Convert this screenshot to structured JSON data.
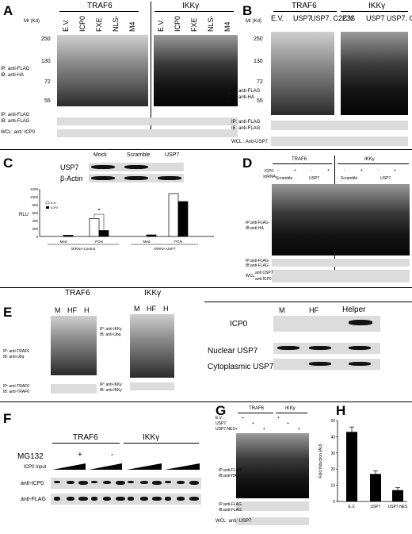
{
  "panels": {
    "A": {
      "letter": "A",
      "group1": "TRAF6",
      "group2": "IKKγ",
      "lanes": [
        "E.V.",
        "ICP0",
        "FXE",
        "NLS-",
        "M4",
        "E.V.",
        "ICP0",
        "FXE",
        "NLS-",
        "M4"
      ],
      "mr_label": "Mr (Kd)",
      "markers": [
        "250",
        "130",
        "72",
        "55"
      ],
      "ip1": "IP: anti-FLAG",
      "ib1": "IB: anti-HA",
      "ip2": "IP: anti-FLAG",
      "ib2": "IB: anti-FLAG",
      "wcl": "WCL: anti: ICP0"
    },
    "B": {
      "letter": "B",
      "group1": "TRAF6",
      "group2": "IKKγ",
      "lanes": [
        "E.V.",
        "USP7",
        "USP7. C223S",
        "E.V.",
        "USP7",
        "USP7. C223S"
      ],
      "mr_label": "Mr (Kd)",
      "markers": [
        "250",
        "130",
        "72",
        "55"
      ],
      "ip1": "IP: anti-FLAG",
      "ib1": "IB: anti-HA",
      "ip2": "IP: anti-FLAG",
      "ib2": "IB: anti-FLAG",
      "wcl": "WCL : Anti-USP7"
    },
    "C": {
      "letter": "C",
      "blot_cols": [
        "Mock",
        "Scramble",
        "USP7"
      ],
      "blot_rows": [
        "USP7",
        "β-Actin"
      ],
      "ylabel": "RLU",
      "legend": [
        "E.V.",
        "ICP0"
      ],
      "yticks": [
        "0",
        "200",
        "400",
        "600",
        "800",
        "1000",
        "1200"
      ],
      "x_cats": [
        "Med",
        "PGN",
        "Med",
        "PGN"
      ],
      "group_labels": [
        "shRNA-Control",
        "shRNA-USP7"
      ],
      "sig": "*"
    },
    "D": {
      "letter": "D",
      "group1": "TRAF6",
      "group2": "IKKγ",
      "icp0": "ICP0",
      "shrna": "shRNA",
      "signs": [
        "-",
        "+",
        "-",
        "+",
        "-",
        "+",
        "-",
        "+"
      ],
      "sub": [
        "Scramble",
        "USP7",
        "Scramble",
        "USP7"
      ],
      "ip1": "IP:anti-FLAG",
      "ib1": "IB:anti-HA",
      "ip2": "IP:anti-FLAG",
      "ib2": "IB:anti-FLAG",
      "wcl": "WCL:",
      "wcl1": "anti:USP7",
      "wcl2": "anti:ICP0"
    },
    "E": {
      "letter": "E",
      "group1": "TRAF6",
      "group2": "IKKγ",
      "lanes": [
        "M",
        "HF",
        "H"
      ],
      "ip1": "IP: anti-TRAF6",
      "ib1": "IB: anti-Ubq",
      "ip2": "IP: anti-IKKγ",
      "ib2": "IB: anti-Ubq",
      "ip3": "IP: anti-TRAF6",
      "ib3": "IB: anti-TRAF6",
      "ip4": "IP: anti-IKKγ",
      "ib4": "IB: anti-IKKγ",
      "right_lanes": [
        "M",
        "HF",
        "Helper"
      ],
      "right_rows": [
        "ICP0",
        "Nuclear USP7",
        "Cytoplasmic USP7"
      ]
    },
    "F": {
      "letter": "F",
      "group1": "TRAF6",
      "group2": "IKKγ",
      "mg132": "MG132",
      "plus": "+",
      "minus": "-",
      "input": "ICP0 Input",
      "rows": [
        "anti-ICP0",
        "anti-FLAG"
      ]
    },
    "G": {
      "letter": "G",
      "group1": "TRAF6",
      "group2": "IKKγ",
      "rows": [
        "E.V.",
        "USP7",
        "USP7.NES+"
      ],
      "ip1": "IP:anti-FLAG",
      "ib1": "IB:anti-HA",
      "ip2": "IP:anti-FLAG",
      "ib2": "IB:anti-FLAG",
      "wcl": "WCL: anti: USP7"
    },
    "H": {
      "letter": "H"
    }
  },
  "chart_data": [
    {
      "type": "bar",
      "panel": "C",
      "categories": [
        "Med",
        "PGN",
        "Med",
        "PGN"
      ],
      "groups": [
        "shRNA-Control",
        "shRNA-USP7"
      ],
      "series": [
        {
          "name": "E.V.",
          "values": [
            0,
            450,
            0,
            1080
          ]
        },
        {
          "name": "ICP0",
          "values": [
            30,
            150,
            40,
            880
          ]
        }
      ],
      "ylabel": "RLU",
      "ylim": [
        0,
        1200
      ],
      "color_ev": "#ffffff",
      "color_icp0": "#000000"
    },
    {
      "type": "bar",
      "panel": "H",
      "categories": [
        "E.V.",
        "USP7",
        "USP7.NES"
      ],
      "values": [
        43,
        17,
        7
      ],
      "errors": [
        3,
        2,
        1.5
      ],
      "ylabel": "Fold Induction (AU)",
      "yticks": [
        "0",
        "10",
        "20",
        "30",
        "40",
        "50"
      ],
      "ylim": [
        0,
        50
      ],
      "color": "#000000"
    }
  ]
}
